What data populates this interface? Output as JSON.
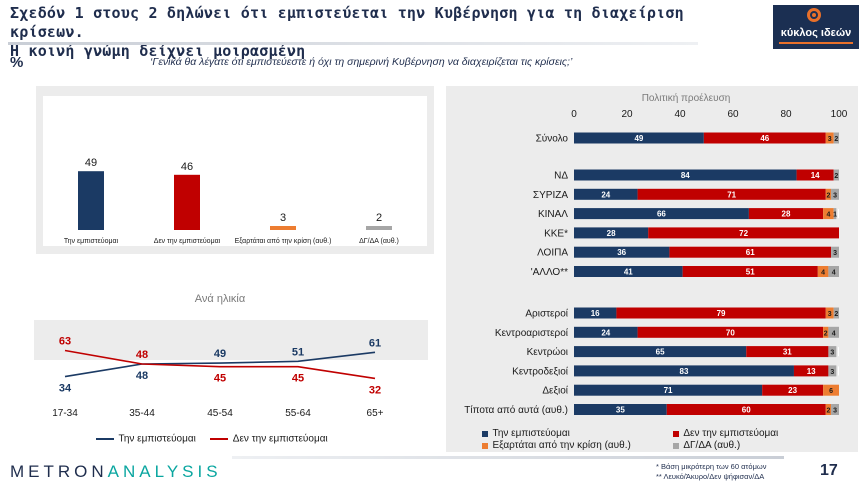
{
  "header": {
    "title_line1": "Σχεδόν 1 στους 2 δηλώνει ότι εμπιστεύεται την Κυβέρνηση για τη διαχείριση κρίσεων.",
    "title_line2": "Η κοινή γνώμη δείχνει μοιρασμένη",
    "logo_text": "κύκλος ιδεών",
    "percent_sign": "%",
    "question": "‘Γενικά θα λέγατε ότι εμπιστεύεστε ή όχι τη σημερινή Κυβέρνηση να διαχειρίζεται τις κρίσεις;’"
  },
  "colors": {
    "navy": "#1b3a64",
    "red": "#c00000",
    "orange": "#ed7d31",
    "gray": "#a6a6a6"
  },
  "chart_data": [
    {
      "type": "bar",
      "categories": [
        "Την εμπιστεύομαι",
        "Δεν την εμπιστεύομαι",
        "Εξαρτάται από την κρίση (αυθ.)",
        "ΔΓ/ΔΑ (αυθ.)"
      ],
      "values": [
        49,
        46,
        3,
        2
      ],
      "colors": [
        "#1b3a64",
        "#c00000",
        "#ed7d31",
        "#a6a6a6"
      ],
      "ylim": [
        0,
        100
      ]
    },
    {
      "type": "line",
      "title": "Ανά ηλικία",
      "categories": [
        "17-34",
        "35-44",
        "45-54",
        "55-64",
        "65+"
      ],
      "series": [
        {
          "name": "Την εμπιστεύομαι",
          "values": [
            34,
            48,
            49,
            51,
            61
          ],
          "color": "#1b3a64"
        },
        {
          "name": "Δεν την εμπιστεύομαι",
          "values": [
            63,
            48,
            45,
            45,
            32
          ],
          "color": "#c00000"
        }
      ]
    },
    {
      "type": "bar",
      "orientation": "horizontal",
      "stacked": true,
      "title": "Πολιτική προέλευση",
      "xlim": [
        0,
        100
      ],
      "xticks": [
        "0",
        "20",
        "40",
        "60",
        "80",
        "100"
      ],
      "groups": [
        [
          "Σύνολο"
        ],
        [
          "ΝΔ",
          "ΣΥΡΙΖΑ",
          "ΚΙΝΑΛ",
          "ΚΚΕ*",
          "ΛΟΙΠΑ",
          "'ΑΛΛΟ**"
        ],
        [
          "Αριστεροί",
          "Κεντροαριστεροί",
          "Κεντρώοι",
          "Κεντροδεξιοί",
          "Δεξιοί",
          "Τίποτα από αυτά (αυθ.)"
        ]
      ],
      "categories": [
        "Σύνολο",
        "ΝΔ",
        "ΣΥΡΙΖΑ",
        "ΚΙΝΑΛ",
        "ΚΚΕ*",
        "ΛΟΙΠΑ",
        "'ΑΛΛΟ**",
        "Αριστεροί",
        "Κεντροαριστεροί",
        "Κεντρώοι",
        "Κεντροδεξιοί",
        "Δεξιοί",
        "Τίποτα από αυτά (αυθ.)"
      ],
      "series": [
        {
          "name": "Την εμπιστεύομαι",
          "color": "#1b3a64",
          "values": [
            49,
            84,
            24,
            66,
            28,
            36,
            41,
            16,
            24,
            65,
            83,
            71,
            35
          ]
        },
        {
          "name": "Δεν την εμπιστεύομαι",
          "color": "#c00000",
          "values": [
            46,
            14,
            71,
            28,
            72,
            61,
            51,
            79,
            70,
            31,
            13,
            23,
            60
          ]
        },
        {
          "name": "Εξαρτάται από την κρίση (αυθ.)",
          "color": "#ed7d31",
          "values": [
            3,
            0,
            2,
            4,
            0,
            0,
            4,
            3,
            2,
            0,
            0,
            6,
            2
          ]
        },
        {
          "name": "ΔΓ/ΔΑ (αυθ.)",
          "color": "#a6a6a6",
          "values": [
            2,
            2,
            3,
            1,
            0,
            3,
            4,
            2,
            4,
            3,
            3,
            0,
            3
          ]
        }
      ],
      "value_labels": [
        [
          "49",
          "46",
          "3",
          "2"
        ],
        [
          "84",
          "14",
          "",
          "2"
        ],
        [
          "24",
          "71",
          "2",
          "3"
        ],
        [
          "66",
          "28",
          "4",
          "1"
        ],
        [
          "28",
          "72",
          "",
          ""
        ],
        [
          "36",
          "61",
          "",
          "3"
        ],
        [
          "41",
          "51",
          "4",
          "4"
        ],
        [
          "16",
          "79",
          "3",
          "2"
        ],
        [
          "24",
          "70",
          "2",
          "4"
        ],
        [
          "65",
          "31",
          "",
          "3"
        ],
        [
          "83",
          "13",
          "",
          "3"
        ],
        [
          "71",
          "23",
          "6",
          ""
        ],
        [
          "35",
          "60",
          "2",
          "3"
        ]
      ]
    }
  ],
  "legend_right": {
    "item1": "Την εμπιστεύομαι",
    "item2": "Δεν την εμπιστεύομαι",
    "item3": "Εξαρτάται από την κρίση (αυθ.)",
    "item4": "ΔΓ/ΔΑ (αυθ.)"
  },
  "legend_age": {
    "item1": "Την εμπιστεύομαι",
    "item2": "Δεν την εμπιστεύομαι"
  },
  "footer": {
    "brand_part1": "METRON",
    "brand_part2": "ANALYSIS",
    "note1": "*  Βάση μικρότερη των 60 ατόμων",
    "note2": "** Λευκό/Άκυρο/Δεν ψήφισαν/ΔΑ",
    "page_number": "17"
  }
}
